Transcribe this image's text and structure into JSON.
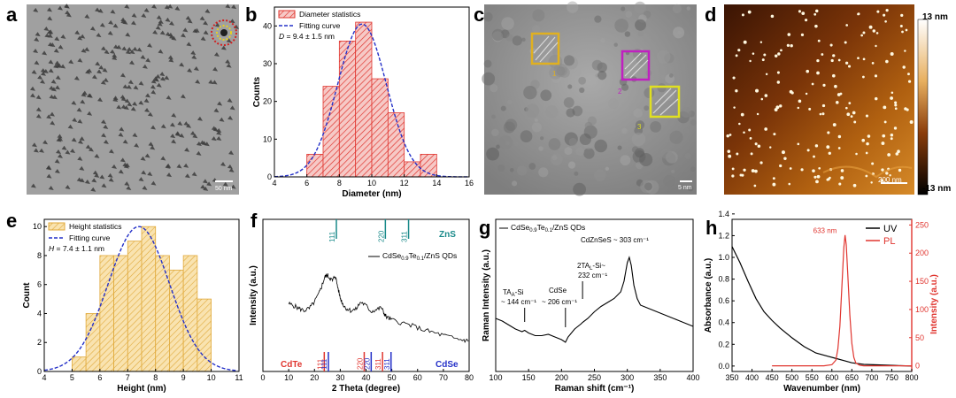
{
  "panel_letters": [
    "a",
    "b",
    "c",
    "d",
    "e",
    "f",
    "g",
    "h"
  ],
  "scale_bars": {
    "a": "50 nm",
    "c": "5 nm",
    "d": "200 nm"
  },
  "afm_colorbar": {
    "max": "13 nm",
    "min": "-13 nm"
  },
  "fringe_labels": [
    "1",
    "2",
    "3"
  ],
  "colors": {
    "red": "#e0352f",
    "blue": "#2430c8",
    "teal": "#1a8a8a",
    "gold": "#e0a93a",
    "black": "#000000"
  },
  "chart_data": [
    {
      "panel": "b",
      "type": "bar",
      "title": "",
      "xlabel": "Diameter (nm)",
      "ylabel": "Counts",
      "xlim": [
        4,
        16
      ],
      "ylim": [
        0,
        45
      ],
      "xticks": [
        4,
        6,
        8,
        10,
        12,
        14,
        16
      ],
      "yticks": [
        0,
        10,
        20,
        30,
        40
      ],
      "bin_width": 1,
      "bin_starts": [
        6,
        7,
        8,
        9,
        10,
        11,
        12,
        13
      ],
      "values": [
        6,
        24,
        36,
        41,
        26,
        17,
        4,
        6
      ],
      "fit": {
        "mean": 9.4,
        "sigma": 1.5,
        "amplitude": 40.5
      },
      "legend": {
        "hist": "Diameter statistics",
        "fit": "Fitting curve"
      },
      "annotation": {
        "prefix": "D",
        "text": " = 9.4 ± 1.5 nm"
      }
    },
    {
      "panel": "e",
      "type": "bar",
      "xlabel": "Height (nm)",
      "ylabel": "Count",
      "xlim": [
        4,
        11
      ],
      "ylim": [
        0,
        10.5
      ],
      "xticks": [
        4,
        5,
        6,
        7,
        8,
        9,
        10,
        11
      ],
      "yticks": [
        0,
        2,
        4,
        6,
        8,
        10
      ],
      "bin_width": 0.5,
      "bin_starts": [
        5,
        5.5,
        6,
        6.5,
        7,
        7.5,
        8,
        8.5,
        9
      ],
      "values": [
        1,
        4,
        8,
        8,
        9,
        10,
        8,
        7,
        8,
        5
      ],
      "bin_starts_full": [
        5,
        5.5,
        6,
        6.5,
        7,
        7.5,
        8,
        8.5,
        9,
        9.5
      ],
      "fit": {
        "mean": 7.4,
        "sigma": 1.1,
        "amplitude": 10
      },
      "legend": {
        "hist": "Height statistics",
        "fit": "Fitting curve"
      },
      "annotation": {
        "prefix": "H",
        "text": " = 7.4 ± 1.1 nm"
      }
    },
    {
      "panel": "f",
      "type": "line",
      "xlabel": "2 Theta (degree)",
      "ylabel": "Intensity (a.u.)",
      "xlim": [
        0,
        80
      ],
      "xticks": [
        0,
        10,
        20,
        30,
        40,
        50,
        60,
        70,
        80
      ],
      "series_name_base": "CdSe",
      "series_name_sub1": "0.9",
      "series_name_mid": "Te",
      "series_name_sub2": "0.1",
      "series_name_end": "/ZnS QDs",
      "x": [
        10,
        12,
        14,
        16,
        18,
        20,
        22,
        23,
        24,
        25,
        26,
        27,
        28,
        29,
        30,
        31,
        32,
        34,
        36,
        38,
        40,
        42,
        44,
        46,
        47,
        48,
        50,
        54,
        58,
        62,
        66,
        70,
        74,
        78,
        80
      ],
      "y": [
        0.5,
        0.48,
        0.45,
        0.43,
        0.45,
        0.52,
        0.62,
        0.7,
        0.78,
        0.8,
        0.77,
        0.74,
        0.8,
        0.68,
        0.56,
        0.5,
        0.46,
        0.43,
        0.44,
        0.52,
        0.48,
        0.42,
        0.44,
        0.46,
        0.4,
        0.36,
        0.33,
        0.3,
        0.27,
        0.23,
        0.2,
        0.17,
        0.14,
        0.12,
        0.11
      ],
      "refs": [
        {
          "name": "ZnS",
          "color": "#1a8a8a",
          "peaks": [
            {
              "x": 28.5,
              "label": "111"
            },
            {
              "x": 47.5,
              "label": "220"
            },
            {
              "x": 56.5,
              "label": "311"
            }
          ]
        },
        {
          "name": "CdTe",
          "color": "#e0352f",
          "peaks": [
            {
              "x": 23.8,
              "label": "111"
            },
            {
              "x": 39.3,
              "label": "220"
            },
            {
              "x": 46.4,
              "label": "311"
            }
          ]
        },
        {
          "name": "CdSe",
          "color": "#2430c8",
          "peaks": [
            {
              "x": 25.4,
              "label": "111"
            },
            {
              "x": 42.0,
              "label": "220"
            },
            {
              "x": 49.7,
              "label": "311"
            }
          ]
        }
      ]
    },
    {
      "panel": "g",
      "type": "line",
      "xlabel": "Raman shift (cm⁻¹)",
      "ylabel": "Raman Intensity (a.u.)",
      "xlim": [
        100,
        400
      ],
      "xticks": [
        100,
        150,
        200,
        250,
        300,
        350,
        400
      ],
      "series_name_base": "CdSe",
      "series_name_sub1": "0.9",
      "series_name_mid": "Te",
      "series_name_sub2": "0.1",
      "series_name_end": "/ZnS QDs",
      "x": [
        100,
        110,
        120,
        130,
        140,
        144,
        150,
        160,
        170,
        180,
        190,
        200,
        206,
        210,
        220,
        230,
        232,
        240,
        250,
        260,
        270,
        280,
        290,
        295,
        300,
        303,
        306,
        310,
        315,
        320,
        330,
        340,
        350,
        360,
        370,
        380,
        390,
        400
      ],
      "y": [
        0.3,
        0.28,
        0.25,
        0.22,
        0.2,
        0.21,
        0.19,
        0.17,
        0.17,
        0.18,
        0.16,
        0.14,
        0.12,
        0.16,
        0.22,
        0.26,
        0.27,
        0.3,
        0.35,
        0.39,
        0.42,
        0.45,
        0.5,
        0.58,
        0.72,
        0.76,
        0.7,
        0.55,
        0.45,
        0.4,
        0.38,
        0.36,
        0.34,
        0.32,
        0.3,
        0.28,
        0.26,
        0.24
      ],
      "annotations": [
        {
          "line1": "TA",
          "sub": "A",
          "line1b": "-Si",
          "line2": "~ 144 cm⁻¹",
          "x": 144
        },
        {
          "line1": "CdSe",
          "line2": "~ 206 cm⁻¹",
          "x": 206
        },
        {
          "line1": "2TA",
          "sub": "L",
          "line1b": "-Si~",
          "line2": "232 cm⁻¹",
          "x": 232
        },
        {
          "line1": "CdZnSeS ~ 303 cm⁻¹",
          "x": 303
        }
      ]
    },
    {
      "panel": "h",
      "type": "line",
      "xlabel": "Wavenumber (nm)",
      "ylabel": "Absorbance (a.u.)",
      "ylabel2": "Intensity (a.u.)",
      "xlim": [
        350,
        800
      ],
      "xticks": [
        350,
        400,
        450,
        500,
        550,
        600,
        650,
        700,
        750,
        800
      ],
      "ylim": [
        -0.05,
        1.35
      ],
      "yticks": [
        0.0,
        0.2,
        0.4,
        0.6,
        0.8,
        1.0,
        1.2,
        1.4
      ],
      "ylim2": [
        -10,
        260
      ],
      "yticks2": [
        0,
        50,
        100,
        150,
        200,
        250
      ],
      "series": [
        {
          "name": "UV",
          "axis": "left",
          "color": "#000000",
          "x": [
            350,
            370,
            390,
            410,
            430,
            450,
            470,
            500,
            530,
            560,
            590,
            610,
            630,
            650,
            680,
            720,
            760,
            800
          ],
          "y": [
            1.1,
            0.95,
            0.78,
            0.62,
            0.5,
            0.42,
            0.35,
            0.26,
            0.18,
            0.12,
            0.09,
            0.07,
            0.05,
            0.03,
            0.015,
            0.01,
            0.005,
            0.0
          ]
        },
        {
          "name": "PL",
          "axis": "right",
          "color": "#e0352f",
          "x": [
            450,
            580,
            600,
            610,
            615,
            620,
            625,
            630,
            633,
            636,
            640,
            645,
            650,
            655,
            660,
            670,
            680,
            800
          ],
          "y": [
            0,
            0,
            2,
            10,
            30,
            70,
            140,
            210,
            232,
            215,
            160,
            90,
            40,
            15,
            5,
            1,
            0,
            0
          ]
        }
      ],
      "peak_label": "633 nm"
    }
  ]
}
